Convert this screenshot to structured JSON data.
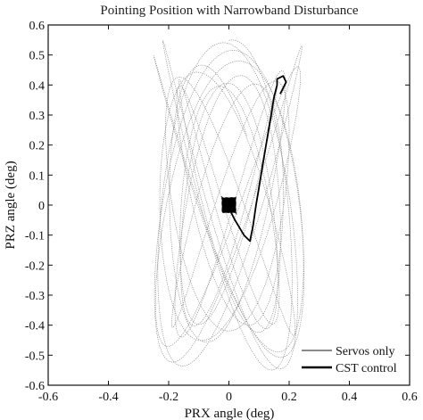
{
  "chart_data": {
    "type": "line",
    "title": "Pointing Position with Narrowband Disturbance",
    "xlabel": "PRX angle (deg)",
    "ylabel": "PRZ angle (deg)",
    "xlim": [
      -0.6,
      0.6
    ],
    "ylim": [
      -0.6,
      0.6
    ],
    "x_ticks": [
      -0.6,
      -0.4,
      -0.2,
      0,
      0.2,
      0.4,
      0.6
    ],
    "y_ticks": [
      -0.6,
      -0.5,
      -0.4,
      -0.3,
      -0.2,
      -0.1,
      0,
      0.1,
      0.2,
      0.3,
      0.4,
      0.5,
      0.6
    ],
    "x_tick_labels": [
      "-0.6",
      "-0.4",
      "-0.2",
      "0",
      "0.2",
      "0.4",
      "0.6"
    ],
    "y_tick_labels": [
      "-0.6",
      "-0.5",
      "-0.4",
      "-0.3",
      "-0.2",
      "-0.1",
      "0",
      "0.1",
      "0.2",
      "0.3",
      "0.4",
      "0.5",
      "0.6"
    ],
    "grid": false,
    "legend_position": "bottom-right",
    "series": [
      {
        "name": "Servos only",
        "color": "#8a8a8a",
        "style": "thin dotted",
        "x_range": [
          -0.25,
          0.25
        ],
        "y_range": [
          -0.55,
          0.55
        ]
      },
      {
        "name": "CST control",
        "color": "#000000",
        "style": "thick solid",
        "x": [
          0.0,
          0.02,
          0.05,
          0.07,
          0.08,
          0.09,
          0.1,
          0.11,
          0.12,
          0.13,
          0.14,
          0.15,
          0.16,
          0.16,
          0.18,
          0.19,
          0.18,
          0.17
        ],
        "y": [
          -0.01,
          -0.05,
          -0.1,
          -0.12,
          -0.07,
          0.0,
          0.06,
          0.12,
          0.18,
          0.24,
          0.3,
          0.36,
          0.4,
          0.42,
          0.43,
          0.41,
          0.39,
          0.37
        ]
      }
    ]
  }
}
